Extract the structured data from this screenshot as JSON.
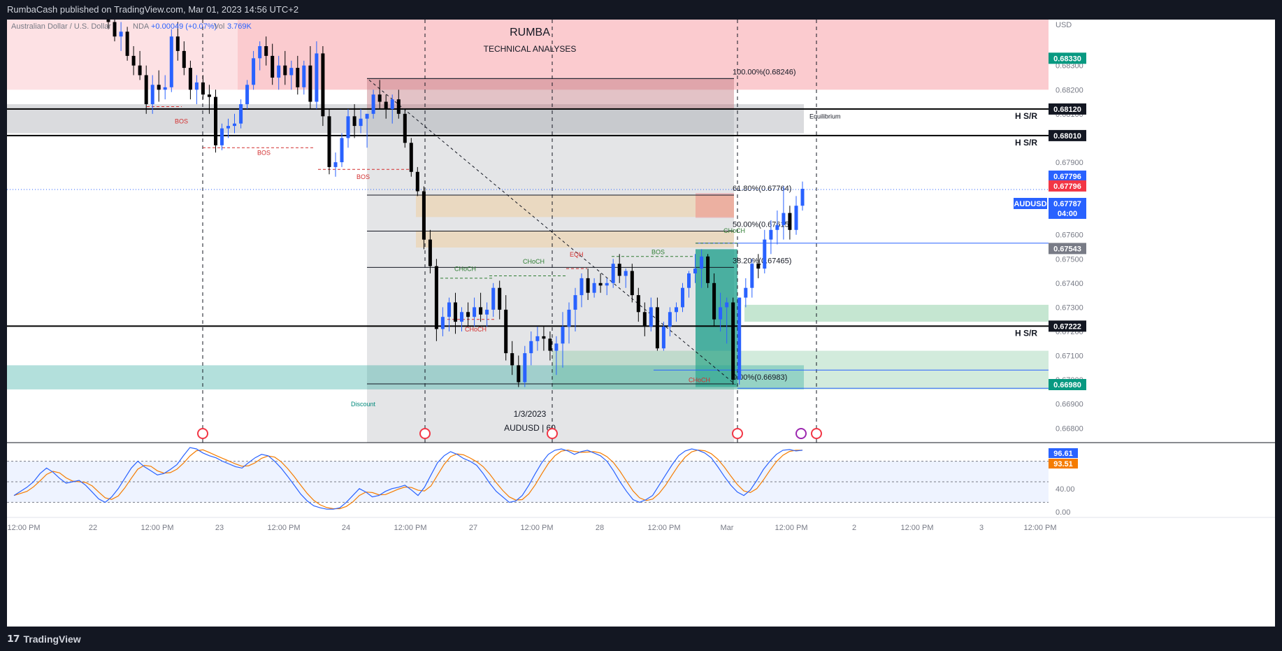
{
  "header": {
    "publish_text": "RumbaCash published on TradingView.com, Mar 01, 2023 14:56 UTC+2"
  },
  "footer": {
    "brand": "TradingView"
  },
  "chart_data": {
    "type": "candlestick",
    "symbol_line": {
      "name": "Australian Dollar / U.S. Dollar",
      "source_partial": "NDA",
      "change": "+0.00049 (+0.07%)",
      "vol_label": "Vol",
      "vol": "3.769K"
    },
    "watermark": {
      "title": "RUMBA",
      "subtitle": "TECHNICAL ANALYSES",
      "date": "1/3/2023",
      "symbol": "AUDUSD | 60"
    },
    "currency": "USD",
    "ylim": [
      0.6674,
      0.6849
    ],
    "y_ticks": [
      "0.68300",
      "0.68200",
      "0.68100",
      "0.68000",
      "0.67900",
      "0.67800",
      "0.67700",
      "0.67600",
      "0.67500",
      "0.67400",
      "0.67300",
      "0.67200",
      "0.67100",
      "0.67000",
      "0.66900",
      "0.66800"
    ],
    "x_ticks": [
      "12:00 PM",
      "22",
      "12:00 PM",
      "23",
      "12:00 PM",
      "24",
      "12:00 PM",
      "27",
      "12:00 PM",
      "28",
      "12:00 PM",
      "Mar",
      "12:00 PM",
      "2",
      "12:00 PM",
      "3",
      "12:00 PM"
    ],
    "price_badges": [
      {
        "label": "0.68330",
        "color": "#089981",
        "value": 0.6833
      },
      {
        "label": "0.68120",
        "color": "#131722",
        "value": 0.6812
      },
      {
        "label": "0.68010",
        "color": "#131722",
        "value": 0.6801
      },
      {
        "label": "0.67796",
        "color": "#2962ff",
        "value": 0.67796
      },
      {
        "label": "0.67796",
        "color": "#f23645",
        "value": 0.67796
      },
      {
        "label": "0.67787",
        "color": "#2962ff",
        "value": 0.67787
      },
      {
        "label": "04:00",
        "color": "#2962ff",
        "value": 0.67787
      },
      {
        "label": "0.67543",
        "color": "#787b86",
        "value": 0.67543
      },
      {
        "label": "0.67222",
        "color": "#131722",
        "value": 0.67222
      },
      {
        "label": "0.66980",
        "color": "#089981",
        "value": 0.6698
      }
    ],
    "symbol_badge": "AUDUSD",
    "hsr_levels": [
      {
        "label": "H S/R",
        "value": 0.6812
      },
      {
        "label": "H S/R",
        "value": 0.6801
      },
      {
        "label": "H S/R",
        "value": 0.67222
      }
    ],
    "fib_levels": [
      {
        "label": "100.00%(0.68246)",
        "value": 0.68246
      },
      {
        "label": "61.80%(0.67764)",
        "value": 0.67764
      },
      {
        "label": "50.00%(0.67615)",
        "value": 0.67615
      },
      {
        "label": "38.20%(0.67465)",
        "value": 0.67465
      },
      {
        "label": "0.00%(0.66983)",
        "value": 0.66983
      }
    ],
    "annotations": [
      {
        "text": "Equilibrium"
      },
      {
        "text": "Discount"
      },
      {
        "text": "BOS"
      },
      {
        "text": "BOS"
      },
      {
        "text": "BOS"
      },
      {
        "text": "BOS"
      },
      {
        "text": "CHoCH"
      },
      {
        "text": "CHoCH"
      },
      {
        "text": "CHoCH"
      },
      {
        "text": "CHoCH"
      },
      {
        "text": "CHoCH"
      },
      {
        "text": "EQH"
      }
    ],
    "candles": [
      [
        0.6852,
        0.6856,
        0.6845,
        0.6848
      ],
      [
        0.6848,
        0.6852,
        0.684,
        0.6842
      ],
      [
        0.6842,
        0.6848,
        0.6836,
        0.6844
      ],
      [
        0.6844,
        0.6846,
        0.6832,
        0.6834
      ],
      [
        0.6834,
        0.6838,
        0.6826,
        0.683
      ],
      [
        0.683,
        0.6836,
        0.6824,
        0.6826
      ],
      [
        0.6826,
        0.683,
        0.681,
        0.6814
      ],
      [
        0.6814,
        0.6826,
        0.681,
        0.6822
      ],
      [
        0.6822,
        0.6828,
        0.6815,
        0.682
      ],
      [
        0.682,
        0.6826,
        0.6816,
        0.6821
      ],
      [
        0.6821,
        0.6845,
        0.6819,
        0.6842
      ],
      [
        0.6842,
        0.6848,
        0.6832,
        0.6836
      ],
      [
        0.6836,
        0.684,
        0.6826,
        0.6829
      ],
      [
        0.6829,
        0.6832,
        0.6816,
        0.682
      ],
      [
        0.682,
        0.6826,
        0.6814,
        0.6823
      ],
      [
        0.6823,
        0.6826,
        0.6816,
        0.6818
      ],
      [
        0.6818,
        0.6822,
        0.681,
        0.6817
      ],
      [
        0.6817,
        0.682,
        0.6794,
        0.6797
      ],
      [
        0.6797,
        0.6806,
        0.6795,
        0.6804
      ],
      [
        0.6804,
        0.6808,
        0.68,
        0.6805
      ],
      [
        0.6805,
        0.681,
        0.6802,
        0.6806
      ],
      [
        0.6806,
        0.6816,
        0.6804,
        0.6814
      ],
      [
        0.6814,
        0.6824,
        0.6812,
        0.6822
      ],
      [
        0.6822,
        0.6836,
        0.682,
        0.6833
      ],
      [
        0.6833,
        0.684,
        0.6828,
        0.6838
      ],
      [
        0.6838,
        0.6842,
        0.683,
        0.6834
      ],
      [
        0.6834,
        0.6839,
        0.6822,
        0.6825
      ],
      [
        0.6825,
        0.6834,
        0.682,
        0.683
      ],
      [
        0.683,
        0.6836,
        0.6822,
        0.6826
      ],
      [
        0.6826,
        0.6832,
        0.682,
        0.6829
      ],
      [
        0.6829,
        0.6834,
        0.6818,
        0.6821
      ],
      [
        0.6821,
        0.6832,
        0.6818,
        0.683
      ],
      [
        0.683,
        0.6838,
        0.6812,
        0.6815
      ],
      [
        0.6815,
        0.684,
        0.6812,
        0.6835
      ],
      [
        0.6835,
        0.6838,
        0.6805,
        0.6809
      ],
      [
        0.6809,
        0.6812,
        0.6785,
        0.6788
      ],
      [
        0.6788,
        0.6794,
        0.6784,
        0.679
      ],
      [
        0.679,
        0.6802,
        0.6788,
        0.68
      ],
      [
        0.68,
        0.6812,
        0.6796,
        0.6809
      ],
      [
        0.6809,
        0.6814,
        0.68,
        0.6805
      ],
      [
        0.6805,
        0.6812,
        0.6802,
        0.6808
      ],
      [
        0.6808,
        0.681,
        0.6796,
        0.681
      ],
      [
        0.681,
        0.682,
        0.6808,
        0.6818
      ],
      [
        0.6818,
        0.6824,
        0.6812,
        0.6815
      ],
      [
        0.6815,
        0.6818,
        0.6808,
        0.6812
      ],
      [
        0.6812,
        0.6818,
        0.6806,
        0.6816
      ],
      [
        0.6816,
        0.682,
        0.6808,
        0.681
      ],
      [
        0.681,
        0.6812,
        0.6796,
        0.6798
      ],
      [
        0.6798,
        0.68,
        0.6784,
        0.6786
      ],
      [
        0.6786,
        0.6788,
        0.6776,
        0.6778
      ],
      [
        0.6778,
        0.678,
        0.6754,
        0.6758
      ],
      [
        0.6758,
        0.6762,
        0.6744,
        0.6747
      ],
      [
        0.6747,
        0.675,
        0.6716,
        0.6721
      ],
      [
        0.6721,
        0.673,
        0.6718,
        0.6726
      ],
      [
        0.6726,
        0.6734,
        0.672,
        0.6732
      ],
      [
        0.6732,
        0.6736,
        0.6719,
        0.6724
      ],
      [
        0.6724,
        0.673,
        0.672,
        0.6728
      ],
      [
        0.6728,
        0.6732,
        0.6722,
        0.6726
      ],
      [
        0.6726,
        0.6734,
        0.6722,
        0.673
      ],
      [
        0.673,
        0.6736,
        0.6724,
        0.6727
      ],
      [
        0.6727,
        0.6732,
        0.6722,
        0.6729
      ],
      [
        0.6729,
        0.674,
        0.6726,
        0.6738
      ],
      [
        0.6738,
        0.6741,
        0.6725,
        0.6729
      ],
      [
        0.6729,
        0.6735,
        0.6708,
        0.6711
      ],
      [
        0.6711,
        0.6716,
        0.6702,
        0.6706
      ],
      [
        0.6706,
        0.671,
        0.6697,
        0.6699
      ],
      [
        0.6699,
        0.6714,
        0.6697,
        0.6711
      ],
      [
        0.6711,
        0.672,
        0.6706,
        0.6716
      ],
      [
        0.6716,
        0.6722,
        0.6712,
        0.6718
      ],
      [
        0.6718,
        0.6722,
        0.6712,
        0.6717
      ],
      [
        0.6717,
        0.672,
        0.6708,
        0.6712
      ],
      [
        0.6712,
        0.6718,
        0.6702,
        0.6715
      ],
      [
        0.6715,
        0.6728,
        0.6705,
        0.6722
      ],
      [
        0.6722,
        0.6732,
        0.6715,
        0.6729
      ],
      [
        0.6729,
        0.6738,
        0.672,
        0.6735
      ],
      [
        0.6735,
        0.6744,
        0.673,
        0.6742
      ],
      [
        0.6742,
        0.6746,
        0.6733,
        0.6736
      ],
      [
        0.6736,
        0.6742,
        0.6734,
        0.674
      ],
      [
        0.674,
        0.6744,
        0.6736,
        0.6739
      ],
      [
        0.6739,
        0.6742,
        0.6735,
        0.674
      ],
      [
        0.674,
        0.675,
        0.6738,
        0.6748
      ],
      [
        0.6748,
        0.6752,
        0.674,
        0.6743
      ],
      [
        0.6743,
        0.6746,
        0.6738,
        0.6745
      ],
      [
        0.6745,
        0.6748,
        0.6732,
        0.6735
      ],
      [
        0.6735,
        0.6738,
        0.6724,
        0.6728
      ],
      [
        0.6728,
        0.6732,
        0.6718,
        0.6722
      ],
      [
        0.6722,
        0.6734,
        0.672,
        0.673
      ],
      [
        0.673,
        0.6734,
        0.6712,
        0.6713
      ],
      [
        0.6713,
        0.6724,
        0.6712,
        0.6722
      ],
      [
        0.6722,
        0.673,
        0.6718,
        0.6728
      ],
      [
        0.6728,
        0.6732,
        0.6724,
        0.673
      ],
      [
        0.673,
        0.674,
        0.6728,
        0.6738
      ],
      [
        0.6738,
        0.6745,
        0.6734,
        0.6744
      ],
      [
        0.6744,
        0.6752,
        0.674,
        0.6746
      ],
      [
        0.6746,
        0.6754,
        0.6738,
        0.6751
      ],
      [
        0.6751,
        0.6752,
        0.6738,
        0.674
      ],
      [
        0.674,
        0.6744,
        0.6722,
        0.6725
      ],
      [
        0.6725,
        0.6736,
        0.672,
        0.673
      ],
      [
        0.673,
        0.6734,
        0.6715,
        0.6732
      ],
      [
        0.6732,
        0.6734,
        0.6698,
        0.67
      ],
      [
        0.67,
        0.6734,
        0.6698,
        0.6734
      ],
      [
        0.6734,
        0.6742,
        0.673,
        0.6738
      ],
      [
        0.6738,
        0.675,
        0.6734,
        0.6748
      ],
      [
        0.6748,
        0.6752,
        0.6742,
        0.6746
      ],
      [
        0.6746,
        0.6762,
        0.6744,
        0.6758
      ],
      [
        0.6758,
        0.6766,
        0.6752,
        0.6762
      ],
      [
        0.6762,
        0.677,
        0.6756,
        0.6764
      ],
      [
        0.6764,
        0.678,
        0.6758,
        0.6769
      ],
      [
        0.6769,
        0.6772,
        0.6758,
        0.6762
      ],
      [
        0.6762,
        0.6776,
        0.676,
        0.6772
      ],
      [
        0.6772,
        0.6782,
        0.677,
        0.6779
      ]
    ],
    "oscillator": {
      "levels": [
        "40.00",
        "0.00"
      ],
      "badges": [
        {
          "label": "96.61",
          "color": "#2962ff"
        },
        {
          "label": "93.51",
          "color": "#f57c00"
        }
      ],
      "series_k": [
        30,
        36,
        42,
        50,
        62,
        70,
        64,
        55,
        48,
        50,
        52,
        45,
        35,
        25,
        20,
        28,
        40,
        55,
        70,
        80,
        72,
        66,
        60,
        62,
        68,
        75,
        88,
        100,
        98,
        92,
        88,
        85,
        80,
        76,
        72,
        70,
        78,
        85,
        90,
        88,
        80,
        70,
        58,
        45,
        32,
        22,
        15,
        12,
        10,
        10,
        12,
        20,
        30,
        40,
        35,
        28,
        30,
        36,
        40,
        42,
        45,
        38,
        30,
        42,
        60,
        78,
        88,
        94,
        90,
        84,
        80,
        74,
        62,
        48,
        36,
        28,
        20,
        22,
        30,
        45,
        62,
        78,
        90,
        96,
        98,
        95,
        90,
        94,
        96,
        92,
        88,
        80,
        66,
        50,
        36,
        24,
        20,
        24,
        30,
        45,
        60,
        75,
        88,
        95,
        98,
        96,
        92,
        85,
        72,
        58,
        45,
        35,
        30,
        38,
        52,
        68,
        80,
        90,
        96,
        97,
        95,
        96
      ]
    }
  }
}
